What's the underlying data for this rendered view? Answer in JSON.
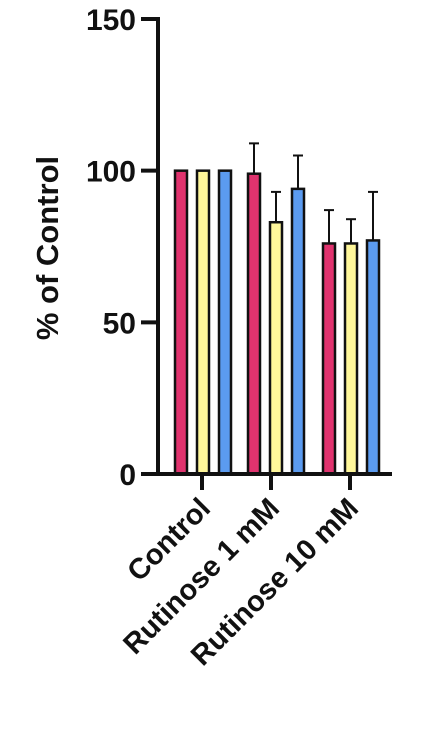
{
  "chart_data": {
    "type": "bar",
    "ylabel": "% of Control",
    "xlabel": "",
    "ylim": [
      0,
      150
    ],
    "yticks": [
      0,
      50,
      100,
      150
    ],
    "categories": [
      "Control",
      "Rutinose 1 mM",
      "Rutinose 10 mM"
    ],
    "series": [
      {
        "color": "#e0336e",
        "values": [
          100,
          99,
          76
        ],
        "errors": [
          0,
          10,
          11
        ]
      },
      {
        "color": "#fff79a",
        "values": [
          100,
          83,
          76
        ],
        "errors": [
          0,
          10,
          8
        ]
      },
      {
        "color": "#5b9bf0",
        "values": [
          100,
          94,
          77
        ],
        "errors": [
          0,
          11,
          16
        ]
      }
    ],
    "grid": false,
    "legend": "none"
  }
}
